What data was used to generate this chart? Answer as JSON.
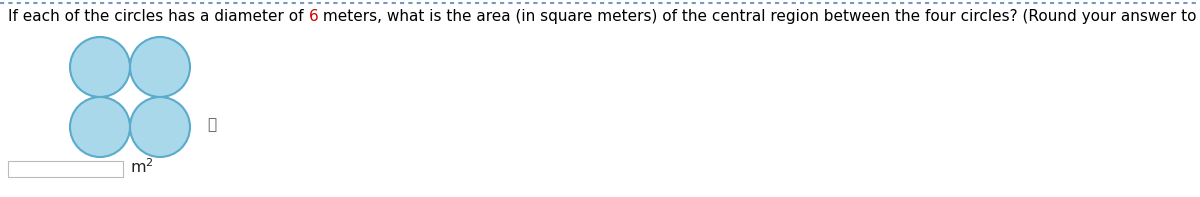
{
  "title_part1": "If each of the circles has a diameter of ",
  "title_highlight": "6",
  "title_part2": " meters, what is the area (in square meters) of the central region between the four circles? (Round your answer to one decimal place.)",
  "title_color": "#000000",
  "highlight_color": "#cc0000",
  "title_fontsize": 11.0,
  "bg_color": "#ffffff",
  "border_top_color": "#7799bb",
  "circle_fill_color": "#a8d8ea",
  "circle_edge_color": "#5aabcc",
  "circle_lw": 1.5,
  "info_icon": "ⓘ",
  "info_fontsize": 11,
  "info_color": "#555555",
  "m2_fontsize": 11.5,
  "m2_color": "#222222",
  "input_box_color": "#f0f0f0",
  "input_box_edge": "#bbbbbb"
}
